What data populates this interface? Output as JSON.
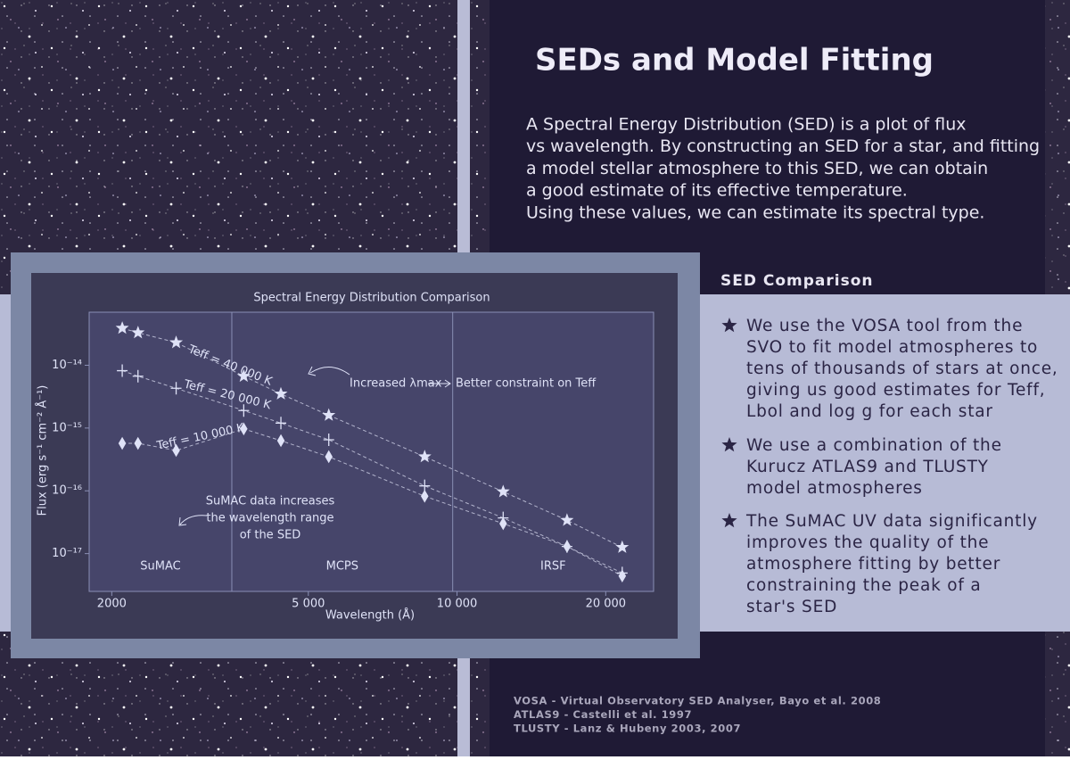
{
  "title": "SEDs and Model Fitting",
  "intro": [
    "A Spectral Energy Distribution (SED) is a plot of flux",
    "vs wavelength. By constructing an SED for a star, and fitting",
    "a model stellar atmosphere to this SED, we can obtain",
    "a good estimate of its effective temperature.",
    "Using these values, we can estimate its spectral type."
  ],
  "sidebar": {
    "heading": "SED Comparison",
    "bullets": [
      [
        "We use the VOSA tool from the",
        "SVO to fit model atmospheres to",
        "tens of thousands of stars at once,",
        "giving us good estimates for Teff,",
        "Lbol and log g for each star"
      ],
      [
        "We use a combination of the",
        "Kurucz ATLAS9 and TLUSTY",
        "model atmospheres"
      ],
      [
        "The SuMAC UV data significantly",
        "improves the quality of the",
        "atmosphere fitting by better",
        "constraining the peak of a",
        "star's SED"
      ]
    ]
  },
  "references": [
    "VOSA - Virtual Observatory SED Analyser, Bayo et al. 2008",
    "ATLAS9 - Castelli et al. 1997",
    "TLUSTY - Lanz & Hubeny 2003, 2007"
  ],
  "chart_data": {
    "type": "line",
    "title": "Spectral Energy Distribution Comparison",
    "xlabel": "Wavelength (Å)",
    "ylabel": "Flux (erg s⁻¹ cm⁻² Å⁻¹)",
    "xscale": "log",
    "yscale": "log",
    "xlim": [
      1800,
      25000
    ],
    "ylim": [
      2.5e-18,
      7e-14
    ],
    "xticks": [
      2000,
      {
        "value": 5000,
        "label": "5 000"
      },
      {
        "value": 10000,
        "label": "10 000"
      },
      {
        "value": 20000,
        "label": "20 000"
      }
    ],
    "yticks": [
      {
        "value": 1e-14,
        "label": "10⁻¹⁴"
      },
      {
        "value": 1e-15,
        "label": "10⁻¹⁵"
      },
      {
        "value": 1e-16,
        "label": "10⁻¹⁶"
      },
      {
        "value": 1e-17,
        "label": "10⁻¹⁷"
      }
    ],
    "x": [
      2100,
      2260,
      2700,
      3700,
      4400,
      5500,
      8600,
      12400,
      16700,
      21600
    ],
    "series": [
      {
        "name": "Teff = 40 000 K",
        "marker": "star",
        "color": "#dfe2f7",
        "values": [
          3.9e-14,
          3.3e-14,
          2.3e-14,
          6.7e-15,
          3.5e-15,
          1.6e-15,
          3.5e-16,
          9.7e-17,
          3.4e-17,
          1.26e-17
        ]
      },
      {
        "name": "Teff = 20 000 K",
        "marker": "cross",
        "color": "#dfe2f7",
        "values": [
          8.2e-15,
          6.7e-15,
          4.3e-15,
          1.9e-15,
          1.2e-15,
          6.5e-16,
          1.2e-16,
          3.7e-17,
          1.3e-17,
          4.9e-18
        ]
      },
      {
        "name": "Teff = 10 000 K",
        "marker": "diamond",
        "color": "#dfe2f7",
        "values": [
          5.7e-16,
          5.7e-16,
          4.4e-16,
          9.7e-16,
          6.3e-16,
          3.5e-16,
          8.2e-17,
          3e-17,
          1.3e-17,
          4.4e-18
        ]
      }
    ],
    "regions": {
      "labels": [
        "SuMAC",
        "MCPS",
        "IRSF"
      ],
      "boundaries": [
        3500,
        9800
      ]
    },
    "annotations": [
      "Increased λmax",
      "Better constraint on Teff"
    ],
    "note_lines": [
      "SuMAC data increases",
      "the wavelength range",
      "of the SED"
    ]
  }
}
